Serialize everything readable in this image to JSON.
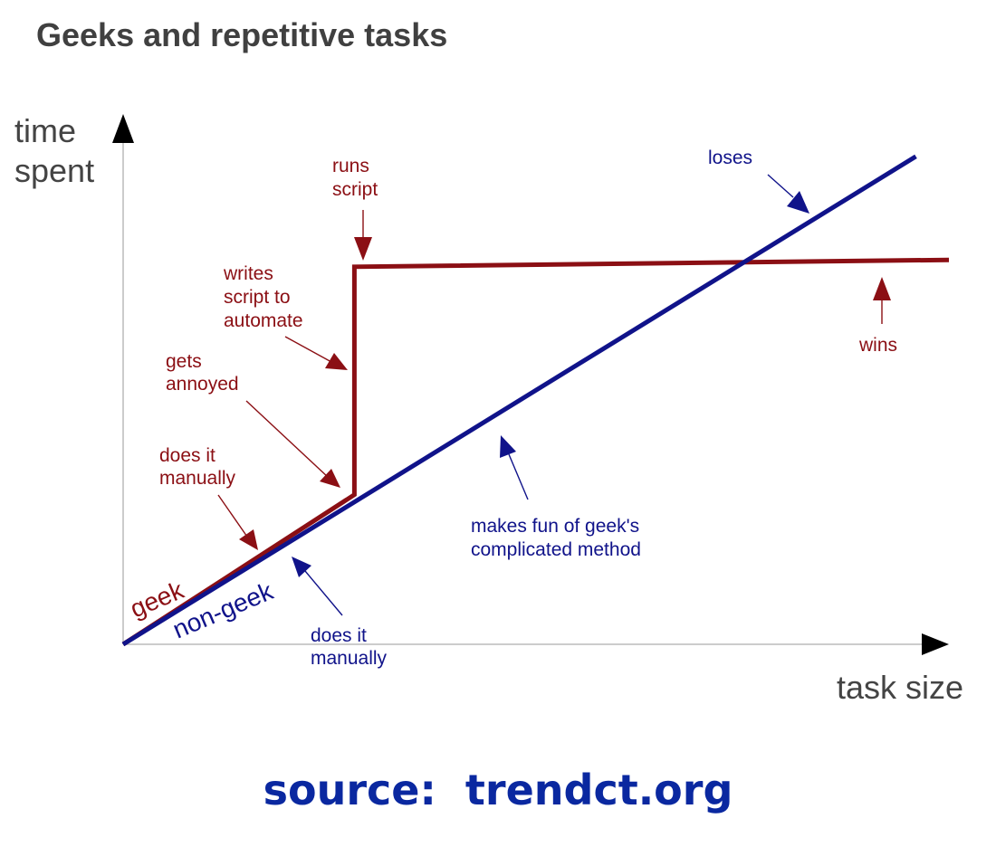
{
  "header": {
    "title": "Geeks and repetitive tasks"
  },
  "footer": {
    "source": "source:  trendct.org"
  },
  "colors": {
    "geek": "#8b0f14",
    "non_geek": "#10138a",
    "axis": "#cccccc",
    "axis_text": "#444444",
    "source": "#0a28a0"
  },
  "chart_data": {
    "type": "line",
    "title": "Geeks and repetitive tasks",
    "xlabel": "task size",
    "ylabel": [
      "time",
      "spent"
    ],
    "xlim": [
      0,
      100
    ],
    "ylim": [
      0,
      100
    ],
    "grid": false,
    "axis_ticks": false,
    "series": [
      {
        "name": "geek",
        "color": "#8b0f14",
        "x": [
          0,
          28,
          28,
          100
        ],
        "y": [
          0,
          28.2,
          71.2,
          72.5
        ]
      },
      {
        "name": "non-geek",
        "color": "#10138a",
        "x": [
          0,
          96
        ],
        "y": [
          0,
          92
        ]
      }
    ],
    "annotations": [
      {
        "key": "geek-does-it-manually",
        "lines": [
          "does it",
          "manually"
        ],
        "series": "geek",
        "target": [
          14,
          14.8
        ]
      },
      {
        "key": "gets-annoyed",
        "lines": [
          "gets",
          "annoyed"
        ],
        "series": "geek",
        "target": [
          27,
          27.4
        ]
      },
      {
        "key": "writes-script",
        "lines": [
          "writes",
          "script to",
          "automate"
        ],
        "series": "geek",
        "target": [
          27.6,
          54
        ]
      },
      {
        "key": "runs-script",
        "lines": [
          "runs",
          "script"
        ],
        "series": "geek",
        "target": [
          29,
          72.5
        ]
      },
      {
        "key": "wins",
        "lines": [
          "wins"
        ],
        "series": "geek",
        "target": [
          92.5,
          72.3
        ]
      },
      {
        "key": "loses",
        "lines": [
          "loses"
        ],
        "series": "non-geek",
        "target": [
          83.5,
          80.2
        ]
      },
      {
        "key": "makes-fun",
        "lines": [
          "makes fun of geek's",
          "complicated method"
        ],
        "series": "non-geek",
        "target": [
          45.5,
          41
        ]
      },
      {
        "key": "nongeek-does-it-manually",
        "lines": [
          "does it",
          "manually"
        ],
        "series": "non-geek",
        "target": [
          20,
          16
        ]
      }
    ]
  }
}
